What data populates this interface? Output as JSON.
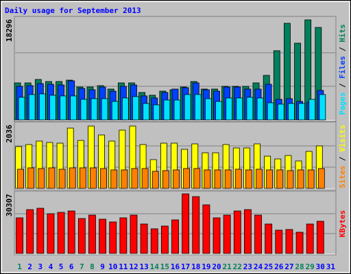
{
  "chart_data": {
    "type": "bar",
    "title": "Daily usage for September 2013",
    "categories": [
      "1",
      "2",
      "3",
      "4",
      "5",
      "6",
      "7",
      "8",
      "9",
      "10",
      "11",
      "12",
      "13",
      "14",
      "15",
      "16",
      "17",
      "18",
      "19",
      "20",
      "21",
      "22",
      "23",
      "24",
      "25",
      "26",
      "27",
      "28",
      "29",
      "30",
      "31"
    ],
    "category_colors": [
      "#00805c",
      "#0000ff",
      "#0000ff",
      "#0000ff",
      "#0000ff",
      "#0000ff",
      "#00805c",
      "#00805c",
      "#0000ff",
      "#0000ff",
      "#0000ff",
      "#0000ff",
      "#0000ff",
      "#00805c",
      "#00805c",
      "#0000ff",
      "#0000ff",
      "#0000ff",
      "#0000ff",
      "#0000ff",
      "#00805c",
      "#00805c",
      "#0000ff",
      "#0000ff",
      "#0000ff",
      "#0000ff",
      "#0000ff",
      "#00805c",
      "#00805c",
      "#0000ff",
      "#0000ff"
    ],
    "legend_separator": "/",
    "panels": [
      {
        "ylim": [
          0,
          18296
        ],
        "yticks": [
          18296
        ],
        "grid": [
          6099,
          12197
        ],
        "series": [
          {
            "name": "Hits",
            "color": "#00805c",
            "values": [
              6721,
              6721,
              7343,
              6970,
              6970,
              7219,
              5974,
              5974,
              6223,
              5601,
              6721,
              6721,
              4978,
              4481,
              5227,
              5476,
              5974,
              6970,
              5601,
              5601,
              6099,
              6099,
              6099,
              6721,
              8090,
              12571,
              17549,
              13940,
              18171,
              16802,
              0
            ]
          },
          {
            "name": "Files",
            "color": "#0040ff",
            "values": [
              6099,
              6223,
              6596,
              6472,
              6347,
              7094,
              5725,
              5476,
              5974,
              5227,
              6099,
              6347,
              4356,
              3983,
              4978,
              5601,
              5850,
              6721,
              5476,
              5227,
              5974,
              5974,
              5601,
              5601,
              6472,
              3734,
              3858,
              3360,
              3236,
              5352,
              0
            ]
          },
          {
            "name": "Pages",
            "color": "#00e0ff",
            "values": [
              4107,
              4605,
              4729,
              4481,
              4356,
              4356,
              3734,
              3858,
              3858,
              3360,
              3983,
              4232,
              2987,
              2738,
              3609,
              3609,
              4605,
              4605,
              3858,
              3360,
              3983,
              3983,
              4107,
              3983,
              3112,
              2863,
              2987,
              2987,
              3734,
              4605,
              0
            ]
          }
        ]
      },
      {
        "ylim": [
          0,
          2036
        ],
        "yticks": [
          2036
        ],
        "grid": [
          679,
          1357
        ],
        "series": [
          {
            "name": "Visits",
            "color": "#ffff00",
            "values": [
              1335,
              1401,
              1511,
              1467,
              1445,
              1926,
              1532,
              1992,
              1707,
              1511,
              1861,
              1992,
              1401,
              919,
              1445,
              1445,
              1248,
              1423,
              1138,
              1138,
              1401,
              1292,
              1292,
              1423,
              1029,
              941,
              1051,
              876,
              1182,
              1357,
              0
            ]
          },
          {
            "name": "Sites",
            "color": "#ff8000",
            "values": [
              613,
              657,
              635,
              657,
              613,
              657,
              657,
              657,
              635,
              591,
              591,
              635,
              635,
              547,
              569,
              591,
              635,
              635,
              591,
              591,
              591,
              613,
              591,
              613,
              591,
              591,
              569,
              591,
              591,
              635,
              0
            ]
          }
        ]
      },
      {
        "ylim": [
          0,
          30307
        ],
        "yticks": [
          30307
        ],
        "grid": [
          10102,
          20205
        ],
        "series": [
          {
            "name": "KBytes",
            "color": "#ff0000",
            "values": [
              18117,
              22298,
              22994,
              20207,
              20904,
              21601,
              17768,
              19510,
              17420,
              16026,
              18117,
              19510,
              14981,
              12542,
              13936,
              17072,
              30307,
              28917,
              24736,
              18117,
              19510,
              21601,
              22298,
              19510,
              14981,
              11846,
              12194,
              10800,
              14981,
              16375,
              0
            ]
          }
        ]
      }
    ]
  }
}
